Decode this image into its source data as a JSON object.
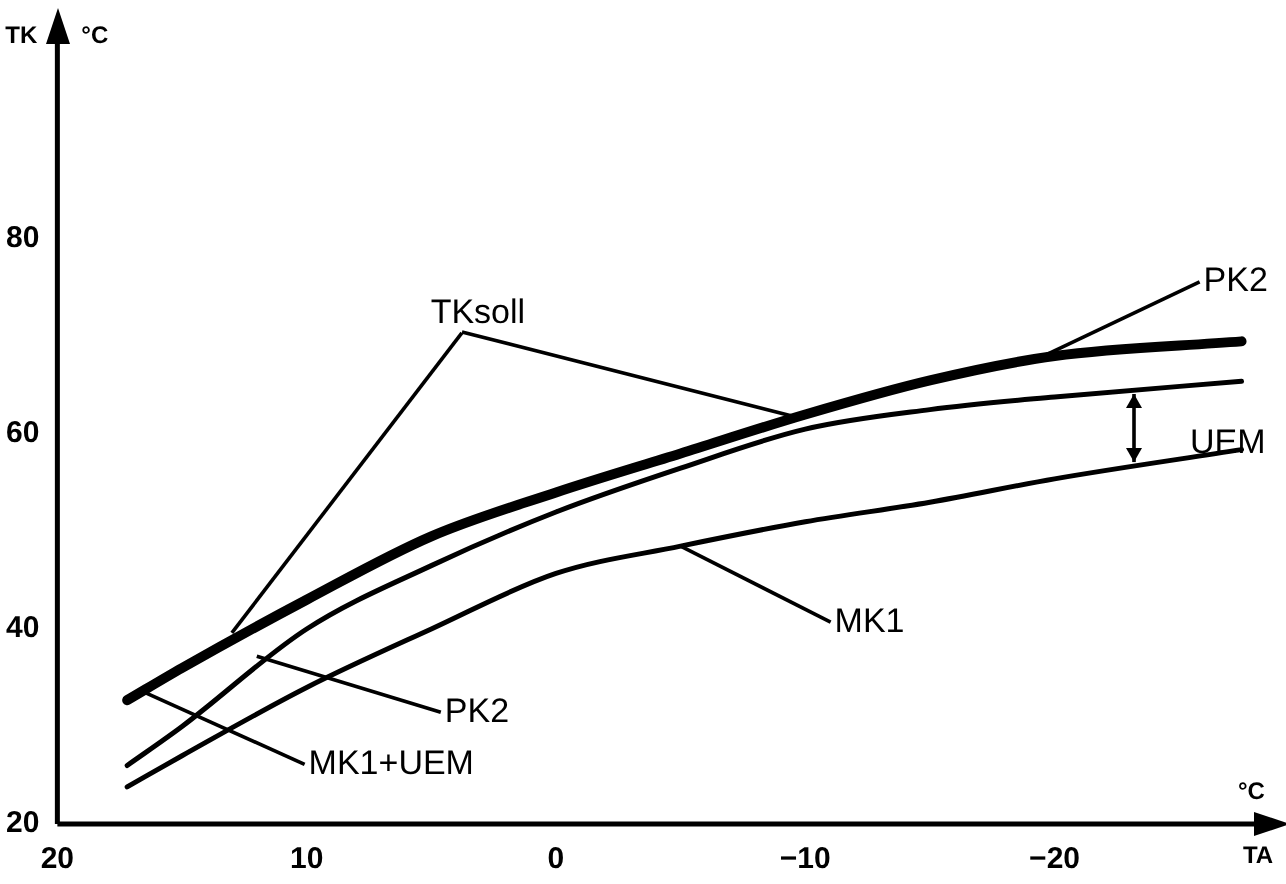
{
  "chart_data": {
    "type": "line",
    "xlabel": "TA",
    "ylabel": "TK",
    "xlim": [
      20,
      -28
    ],
    "ylim": [
      20,
      100
    ],
    "xticks": [
      20,
      10,
      0,
      -10,
      -20
    ],
    "yticks": [
      20,
      40,
      60,
      80
    ],
    "grid": false,
    "legend": false,
    "marker": "none",
    "line_style": "solid",
    "series": [
      {
        "color": "#000000",
        "x": [
          17.2,
          15,
          10,
          5,
          0,
          -5,
          -10,
          -15,
          -20,
          -27.5
        ],
        "values": [
          32.7,
          36,
          43,
          49.5,
          54,
          58,
          62,
          65.5,
          68,
          69.5
        ]
      },
      {
        "color": "#000000",
        "x": [
          17.2,
          15,
          10,
          5,
          0,
          -5,
          -10,
          -15,
          -20,
          -27.5
        ],
        "values": [
          26,
          30,
          40,
          46.5,
          52,
          56.5,
          60.5,
          62.5,
          63.8,
          65.4
        ]
      },
      {
        "color": "#000000",
        "x": [
          17.2,
          15,
          10,
          5,
          0,
          -5,
          -10,
          -15,
          -20,
          -27.5
        ],
        "values": [
          23.8,
          27,
          34,
          40,
          45.7,
          48.5,
          51,
          53,
          55.4,
          58.4
        ]
      }
    ],
    "annotations": [
      {
        "text": "TKsoll",
        "x": 13,
        "y": 39.6
      },
      {
        "text": "PK2",
        "x": -19.4,
        "y": 67.8
      },
      "UEM",
      {
        "text": "MK1",
        "x": -5,
        "y": 48.5
      },
      {
        "text": "PK2",
        "x": 12,
        "y": 37.2
      },
      {
        "text": "MK1+UEM",
        "x": 16.5,
        "y": 33.5
      },
      "°C",
      "°C"
    ]
  }
}
